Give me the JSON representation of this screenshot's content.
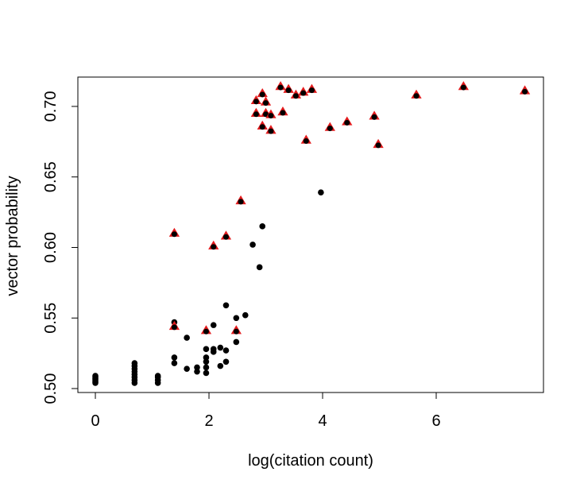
{
  "chart_data": {
    "type": "scatter",
    "xlabel": "log(citation count)",
    "ylabel": "vector probability",
    "xlim": [
      -0.308,
      7.888
    ],
    "ylim": [
      0.4972,
      0.7208
    ],
    "xticks": [
      0,
      2,
      4,
      6
    ],
    "yticks": [
      {
        "value": 0.5,
        "label": "0.50"
      },
      {
        "value": 0.55,
        "label": "0.55"
      },
      {
        "value": 0.6,
        "label": "0.60"
      },
      {
        "value": 0.65,
        "label": "0.65"
      },
      {
        "value": 0.7,
        "label": "0.70"
      }
    ],
    "series": [
      {
        "color": "#000000",
        "marker": "circle",
        "x": [
          0,
          0,
          0,
          0,
          0,
          0,
          0.69,
          0.69,
          0.69,
          0.69,
          0.69,
          0.69,
          0.69,
          0.69,
          1.1,
          1.1,
          1.1,
          1.1,
          1.39,
          1.39,
          1.39,
          1.61,
          1.61,
          1.79,
          1.79,
          1.95,
          1.95,
          1.95,
          1.95,
          1.95,
          2.08,
          2.08,
          2.08,
          2.2,
          2.2,
          2.3,
          2.3,
          2.3,
          2.48,
          2.48,
          2.64,
          2.77,
          2.89,
          2.94,
          3.97
        ],
        "y": [
          0.504,
          0.505,
          0.506,
          0.507,
          0.508,
          0.509,
          0.504,
          0.506,
          0.508,
          0.51,
          0.512,
          0.514,
          0.516,
          0.518,
          0.504,
          0.506,
          0.508,
          0.509,
          0.547,
          0.522,
          0.518,
          0.536,
          0.514,
          0.515,
          0.512,
          0.528,
          0.522,
          0.519,
          0.515,
          0.511,
          0.545,
          0.528,
          0.526,
          0.529,
          0.516,
          0.559,
          0.527,
          0.519,
          0.55,
          0.533,
          0.552,
          0.602,
          0.586,
          0.615,
          0.639
        ]
      },
      {
        "color": "#e31a1c",
        "marker": "triangle",
        "x": [
          1.39,
          2.08,
          2.3,
          2.56,
          1.39,
          1.95,
          2.48,
          2.83,
          2.83,
          2.94,
          2.94,
          3.0,
          3.0,
          3.09,
          3.09,
          3.26,
          3.3,
          3.4,
          3.53,
          3.66,
          3.71,
          3.81,
          4.13,
          4.43,
          4.91,
          4.98,
          5.65,
          6.48,
          7.56
        ],
        "y": [
          0.61,
          0.601,
          0.608,
          0.633,
          0.544,
          0.541,
          0.541,
          0.704,
          0.695,
          0.709,
          0.686,
          0.703,
          0.695,
          0.694,
          0.683,
          0.714,
          0.696,
          0.712,
          0.708,
          0.71,
          0.676,
          0.712,
          0.685,
          0.689,
          0.693,
          0.673,
          0.708,
          0.714,
          0.711
        ]
      }
    ]
  }
}
